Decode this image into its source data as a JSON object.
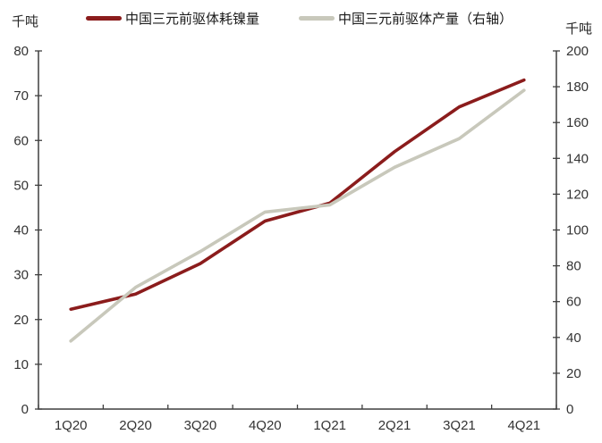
{
  "chart_data": {
    "type": "line",
    "title": "",
    "legend_position": "top",
    "grid": false,
    "categories": [
      "1Q20",
      "2Q20",
      "3Q20",
      "4Q20",
      "1Q21",
      "2Q21",
      "3Q21",
      "4Q21"
    ],
    "series": [
      {
        "name": "中国三元前驱体耗镍量",
        "axis": "left",
        "color": "#8B1C1C",
        "values": [
          22.3,
          25.7,
          32.5,
          42,
          46,
          57.5,
          67.5,
          73.5
        ]
      },
      {
        "name": "中国三元前驱体产量（右轴）",
        "axis": "right",
        "color": "#C8C8BB",
        "values": [
          38,
          68,
          88,
          110,
          114,
          135,
          151,
          178
        ]
      }
    ],
    "left_axis": {
      "unit": "千吨",
      "min": 0,
      "max": 80,
      "ticks": [
        0,
        10,
        20,
        30,
        40,
        50,
        60,
        70,
        80
      ]
    },
    "right_axis": {
      "unit": "千吨",
      "min": 0,
      "max": 200,
      "ticks": [
        0,
        20,
        40,
        60,
        80,
        100,
        120,
        140,
        160,
        180,
        200
      ]
    },
    "axis_color": "#3f3f3f",
    "tick_label_color": "#333333",
    "line_width": 3.6
  }
}
